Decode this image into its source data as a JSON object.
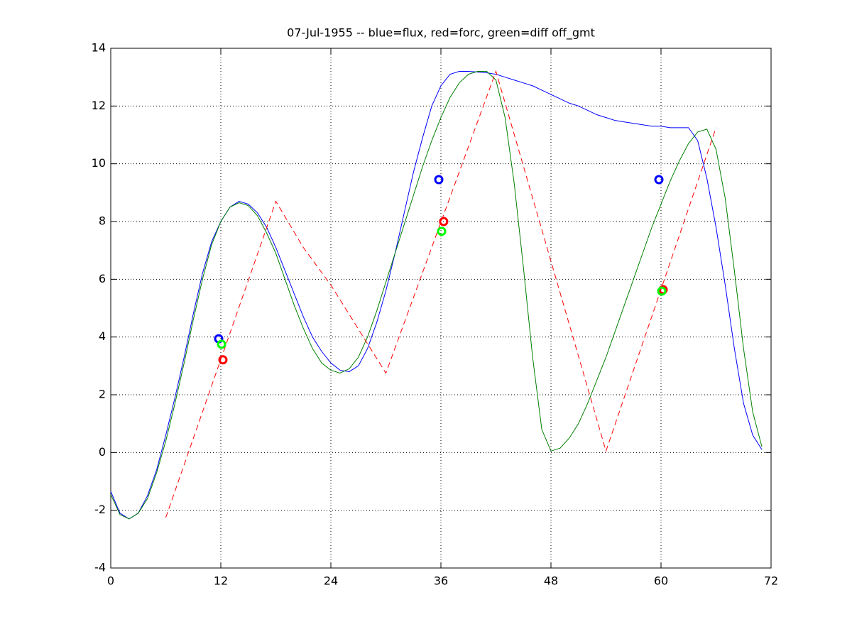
{
  "chart_data": {
    "type": "line",
    "title": "07-Jul-1955 -- blue=flux, red=forc, green=diff off_gmt",
    "xlim": [
      0,
      72
    ],
    "xticks": [
      0,
      12,
      24,
      36,
      48,
      60,
      72
    ],
    "ylim": [
      -4,
      14
    ],
    "yticks": [
      -4,
      -2,
      0,
      2,
      4,
      6,
      8,
      10,
      12,
      14
    ],
    "grid": true,
    "series": [
      {
        "color": "#0000ff",
        "dash": false,
        "x": [
          0,
          1,
          2,
          3,
          4,
          5,
          6,
          7,
          8,
          9,
          10,
          11,
          12,
          13,
          14,
          15,
          16,
          17,
          18,
          19,
          20,
          21,
          22,
          23,
          24,
          25,
          26,
          27,
          28,
          29,
          30,
          31,
          32,
          33,
          34,
          35,
          36,
          37,
          38,
          39,
          40,
          41,
          42,
          43,
          44,
          45,
          46,
          47,
          48,
          49,
          50,
          51,
          52,
          53,
          54,
          55,
          56,
          57,
          58,
          59,
          60,
          61,
          62,
          63,
          64,
          65,
          66,
          67,
          68,
          69,
          70,
          71
        ],
        "values": [
          -1.35,
          -2.1,
          -2.3,
          -2.1,
          -1.5,
          -0.6,
          0.6,
          1.9,
          3.3,
          4.8,
          6.2,
          7.3,
          8.0,
          8.5,
          8.7,
          8.6,
          8.3,
          7.8,
          7.1,
          6.3,
          5.5,
          4.7,
          4.0,
          3.5,
          3.1,
          2.85,
          2.8,
          3.0,
          3.6,
          4.5,
          5.6,
          6.9,
          8.3,
          9.7,
          10.9,
          12.0,
          12.7,
          13.1,
          13.2,
          13.2,
          13.18,
          13.15,
          13.1,
          13.0,
          12.9,
          12.8,
          12.7,
          12.55,
          12.4,
          12.25,
          12.1,
          12.0,
          11.85,
          11.7,
          11.6,
          11.5,
          11.45,
          11.4,
          11.35,
          11.3,
          11.3,
          11.25,
          11.25,
          11.25,
          10.8,
          9.5,
          7.8,
          5.8,
          3.6,
          1.7,
          0.6,
          0.1
        ]
      },
      {
        "color": "#007f00",
        "dash": false,
        "x": [
          0,
          1,
          2,
          3,
          4,
          5,
          6,
          7,
          8,
          9,
          10,
          11,
          12,
          13,
          14,
          15,
          16,
          17,
          18,
          19,
          20,
          21,
          22,
          23,
          24,
          25,
          26,
          27,
          28,
          29,
          30,
          31,
          32,
          33,
          34,
          35,
          36,
          37,
          38,
          39,
          40,
          41,
          42,
          43,
          44,
          45,
          46,
          47,
          48,
          49,
          50,
          51,
          52,
          53,
          54,
          55,
          56,
          57,
          58,
          59,
          60,
          61,
          62,
          63,
          64,
          65,
          66,
          67,
          68,
          69,
          70,
          71
        ],
        "values": [
          -1.45,
          -2.15,
          -2.3,
          -2.1,
          -1.6,
          -0.7,
          0.4,
          1.7,
          3.1,
          4.6,
          6.0,
          7.2,
          8.0,
          8.5,
          8.65,
          8.55,
          8.2,
          7.6,
          6.9,
          6.0,
          5.1,
          4.3,
          3.6,
          3.1,
          2.85,
          2.75,
          2.9,
          3.3,
          4.0,
          4.9,
          5.9,
          6.9,
          7.9,
          8.9,
          9.9,
          10.8,
          11.6,
          12.3,
          12.8,
          13.1,
          13.2,
          13.2,
          12.9,
          11.6,
          9.3,
          6.4,
          3.3,
          0.8,
          0.05,
          0.15,
          0.5,
          1.0,
          1.7,
          2.5,
          3.3,
          4.2,
          5.1,
          6.0,
          6.9,
          7.8,
          8.6,
          9.4,
          10.1,
          10.7,
          11.1,
          11.2,
          10.5,
          8.8,
          6.3,
          3.6,
          1.4,
          0.2
        ]
      },
      {
        "color": "#ff0000",
        "dash": true,
        "x": [
          6,
          18,
          21,
          24,
          30,
          42,
          54,
          66
        ],
        "values": [
          -2.25,
          8.7,
          7.1,
          5.8,
          2.75,
          13.2,
          0.05,
          11.25
        ]
      }
    ],
    "markers": [
      {
        "color": "#0000ff",
        "x": [
          11.77,
          35.77,
          59.77
        ],
        "values": [
          3.94,
          9.45,
          9.45
        ]
      },
      {
        "color": "#ff0000",
        "x": [
          12.23,
          36.3,
          60.23
        ],
        "values": [
          3.21,
          8.0,
          5.64
        ]
      },
      {
        "color": "#00ff00",
        "x": [
          12.08,
          36.08,
          60.08
        ],
        "values": [
          3.75,
          7.66,
          5.59
        ]
      }
    ]
  }
}
